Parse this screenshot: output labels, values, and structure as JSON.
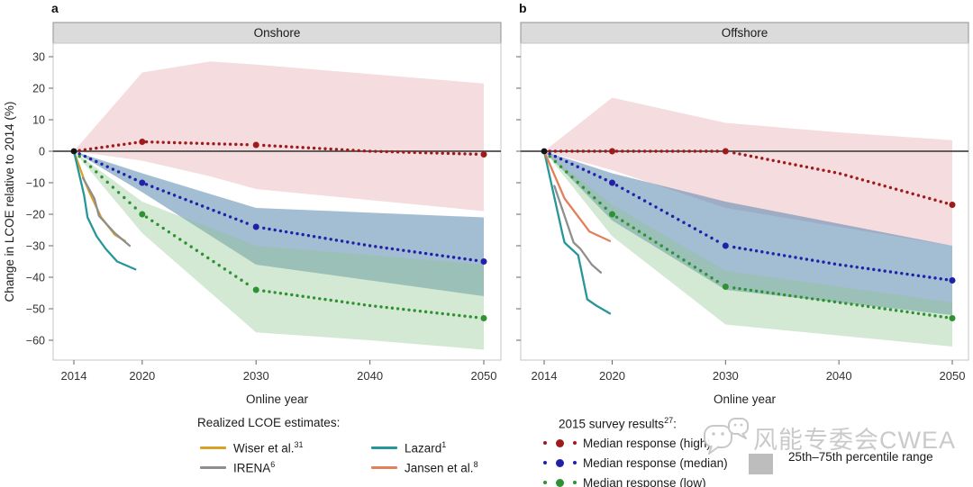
{
  "figure": {
    "ylabel": "Change in LCOE relative to 2014 (%)",
    "xlabel": "Online year"
  },
  "chart_data": [
    {
      "type": "line",
      "panel_label": "a",
      "title": "Onshore",
      "xlabel": "Online year",
      "ylabel": "Change in LCOE relative to 2014 (%)",
      "xlim": [
        2013.5,
        2051.5
      ],
      "ylim": [
        -66,
        34
      ],
      "x_ticks": [
        2014,
        2020,
        2030,
        2040,
        2050
      ],
      "y_ticks": [
        30,
        20,
        10,
        0,
        -10,
        -20,
        -30,
        -40,
        -50,
        -60
      ],
      "show_y_tick_labels": true,
      "grid": false,
      "anchor": {
        "year": 2014,
        "value": 0
      },
      "survey_years": [
        2014,
        2020,
        2030,
        2040,
        2050
      ],
      "bands": [
        {
          "name": "high-25th-75th-percentile",
          "color": "#d98c96",
          "opacity": 0.3,
          "x": [
            2014,
            2020,
            2026,
            2030,
            2040,
            2050
          ],
          "top": [
            0,
            25,
            28.5,
            27.5,
            24.5,
            21.5
          ],
          "bottom": [
            0,
            -3,
            -8,
            -12,
            -15.5,
            -19
          ]
        },
        {
          "name": "median-25th-75th-percentile",
          "color": "#4f81ab",
          "opacity": 0.52,
          "x": [
            2014,
            2020,
            2030,
            2040,
            2050
          ],
          "top": [
            0,
            -7,
            -18,
            -19.5,
            -21
          ],
          "bottom": [
            0,
            -13,
            -36,
            -41,
            -46
          ]
        },
        {
          "name": "low-25th-75th-percentile",
          "color": "#8cc58c",
          "opacity": 0.38,
          "x": [
            2014,
            2020,
            2030,
            2040,
            2050
          ],
          "top": [
            0,
            -16,
            -30,
            -33,
            -36
          ],
          "bottom": [
            0,
            -26,
            -57.5,
            -60,
            -63
          ]
        }
      ],
      "medians": [
        {
          "name": "Median response (high)",
          "color": "#9e1b1b",
          "values": [
            0,
            3,
            2,
            0,
            -1
          ],
          "marker_years": [
            2020,
            2030,
            2050
          ]
        },
        {
          "name": "Median response (median)",
          "color": "#2121a8",
          "values": [
            0,
            -10,
            -24,
            -30,
            -35
          ],
          "marker_years": [
            2020,
            2030,
            2050
          ]
        },
        {
          "name": "Median response (low)",
          "color": "#2e9232",
          "values": [
            0,
            -20,
            -44,
            -49,
            -53
          ],
          "marker_years": [
            2020,
            2030,
            2050
          ]
        }
      ],
      "realized": [
        {
          "name": "Wiser et al.",
          "color": "#d9a226",
          "points": [
            [
              2014,
              0
            ],
            [
              2014.9,
              -9
            ],
            [
              2015.3,
              -12.5
            ],
            [
              2016.4,
              -21
            ],
            [
              2017.6,
              -26.5
            ],
            [
              2018.5,
              -28.5
            ]
          ]
        },
        {
          "name": "IRENA",
          "color": "#8e8e8e",
          "points": [
            [
              2014.8,
              -8.5
            ],
            [
              2015.8,
              -15
            ],
            [
              2016.2,
              -20.5
            ],
            [
              2017.6,
              -26
            ],
            [
              2018.9,
              -30
            ]
          ]
        },
        {
          "name": "Lazard",
          "color": "#27969a",
          "points": [
            [
              2014,
              0
            ],
            [
              2014.9,
              -14
            ],
            [
              2015.2,
              -21
            ],
            [
              2016,
              -27
            ],
            [
              2016.8,
              -31
            ],
            [
              2017.8,
              -35
            ],
            [
              2019.4,
              -37.5
            ]
          ]
        }
      ]
    },
    {
      "type": "line",
      "panel_label": "b",
      "title": "Offshore",
      "xlabel": "Online year",
      "ylabel": "Change in LCOE relative to 2014 (%)",
      "xlim": [
        2013.5,
        2051.5
      ],
      "ylim": [
        -66,
        34
      ],
      "x_ticks": [
        2014,
        2020,
        2030,
        2040,
        2050
      ],
      "y_ticks": [
        30,
        20,
        10,
        0,
        -10,
        -20,
        -30,
        -40,
        -50,
        -60
      ],
      "show_y_tick_labels": false,
      "grid": false,
      "anchor": {
        "year": 2014,
        "value": 0
      },
      "survey_years": [
        2014,
        2020,
        2030,
        2040,
        2050
      ],
      "bands": [
        {
          "name": "high-25th-75th-percentile",
          "color": "#d98c96",
          "opacity": 0.3,
          "x": [
            2014,
            2020,
            2030,
            2040,
            2050
          ],
          "top": [
            0,
            17,
            9,
            6,
            3.5
          ],
          "bottom": [
            0,
            -6,
            -18,
            -24,
            -30
          ]
        },
        {
          "name": "median-25th-75th-percentile",
          "color": "#4f81ab",
          "opacity": 0.52,
          "x": [
            2014,
            2020,
            2030,
            2040,
            2050
          ],
          "top": [
            0,
            -7,
            -16,
            -23,
            -30
          ],
          "bottom": [
            0,
            -22,
            -44,
            -48,
            -52
          ]
        },
        {
          "name": "low-25th-75th-percentile",
          "color": "#8cc58c",
          "opacity": 0.38,
          "x": [
            2014,
            2020,
            2030,
            2040,
            2050
          ],
          "top": [
            0,
            -17,
            -38,
            -43,
            -48
          ],
          "bottom": [
            0,
            -27,
            -55,
            -58.5,
            -62
          ]
        }
      ],
      "medians": [
        {
          "name": "Median response (high)",
          "color": "#9e1b1b",
          "values": [
            0,
            0,
            0,
            -7,
            -17
          ],
          "marker_years": [
            2020,
            2030,
            2050
          ]
        },
        {
          "name": "Median response (median)",
          "color": "#2121a8",
          "values": [
            0,
            -10,
            -30,
            -36,
            -41
          ],
          "marker_years": [
            2020,
            2030,
            2050
          ]
        },
        {
          "name": "Median response (low)",
          "color": "#2e9232",
          "values": [
            0,
            -20,
            -43,
            -48,
            -53
          ],
          "marker_years": [
            2020,
            2030,
            2050
          ]
        }
      ],
      "realized": [
        {
          "name": "IRENA",
          "color": "#8e8e8e",
          "points": [
            [
              2014.9,
              -11
            ],
            [
              2016.6,
              -29
            ],
            [
              2017.2,
              -31
            ],
            [
              2018.2,
              -36
            ],
            [
              2019,
              -38.5
            ]
          ]
        },
        {
          "name": "Lazard",
          "color": "#27969a",
          "points": [
            [
              2014,
              0
            ],
            [
              2015.6,
              -26
            ],
            [
              2015.8,
              -29
            ],
            [
              2017,
              -33
            ],
            [
              2017.8,
              -47
            ],
            [
              2018.6,
              -49
            ],
            [
              2019.8,
              -51.5
            ]
          ]
        },
        {
          "name": "Jansen et al.",
          "color": "#e2805c",
          "points": [
            [
              2014,
              0
            ],
            [
              2015.8,
              -15
            ],
            [
              2018,
              -25.5
            ],
            [
              2019.8,
              -28.5
            ]
          ]
        }
      ]
    }
  ],
  "legend_left": {
    "title": "Realized LCOE estimates:",
    "items": [
      {
        "label": "Wiser et al.",
        "sup": "31",
        "color": "#d9a226"
      },
      {
        "label": "IRENA",
        "sup": "6",
        "color": "#8e8e8e"
      },
      {
        "label": "Lazard",
        "sup": "1",
        "color": "#27969a"
      },
      {
        "label": "Jansen et al.",
        "sup": "8",
        "color": "#e2805c"
      }
    ]
  },
  "legend_right": {
    "title": "2015 survey results",
    "title_sup": "27",
    "title_colon": ":",
    "items": [
      {
        "label": "Median response (high)",
        "color": "#9e1b1b"
      },
      {
        "label": "Median response (median)",
        "color": "#2121a8"
      },
      {
        "label": "Median response (low)",
        "color": "#2e9232"
      }
    ],
    "percentile": {
      "label": "25th–75th percentile range",
      "color": "#bdbdbd"
    }
  },
  "watermark": {
    "text": "风能专委会CWEA",
    "icon": "wechat-icon"
  }
}
